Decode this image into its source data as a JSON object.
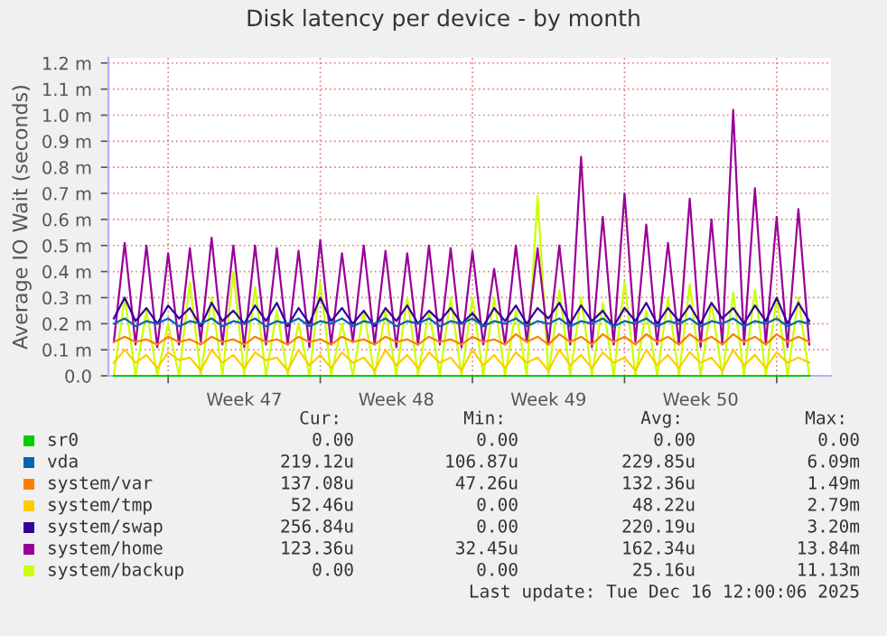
{
  "chart_data": {
    "type": "line",
    "title": "Disk latency per device - by month",
    "ylabel": "Average IO Wait (seconds)",
    "x": [
      "2025-11-14T12:00",
      "2025-11-15T00:00",
      "2025-11-15T12:00",
      "2025-11-16T00:00",
      "2025-11-16T12:00",
      "2025-11-17T00:00",
      "2025-11-17T12:00",
      "2025-11-18T00:00",
      "2025-11-18T12:00",
      "2025-11-19T00:00",
      "2025-11-19T12:00",
      "2025-11-20T00:00",
      "2025-11-20T12:00",
      "2025-11-21T00:00",
      "2025-11-21T12:00",
      "2025-11-22T00:00",
      "2025-11-22T12:00",
      "2025-11-23T00:00",
      "2025-11-23T12:00",
      "2025-11-24T00:00",
      "2025-11-24T12:00",
      "2025-11-25T00:00",
      "2025-11-25T12:00",
      "2025-11-26T00:00",
      "2025-11-26T12:00",
      "2025-11-27T00:00",
      "2025-11-27T12:00",
      "2025-11-28T00:00",
      "2025-11-28T12:00",
      "2025-11-29T00:00",
      "2025-11-29T12:00",
      "2025-11-30T00:00",
      "2025-11-30T12:00",
      "2025-12-01T00:00",
      "2025-12-01T12:00",
      "2025-12-02T00:00",
      "2025-12-02T12:00",
      "2025-12-03T00:00",
      "2025-12-03T12:00",
      "2025-12-04T00:00",
      "2025-12-04T12:00",
      "2025-12-05T00:00",
      "2025-12-05T12:00",
      "2025-12-06T00:00",
      "2025-12-06T12:00",
      "2025-12-07T00:00",
      "2025-12-07T12:00",
      "2025-12-08T00:00",
      "2025-12-08T12:00",
      "2025-12-09T00:00",
      "2025-12-09T12:00",
      "2025-12-10T00:00",
      "2025-12-10T12:00",
      "2025-12-11T00:00",
      "2025-12-11T12:00",
      "2025-12-12T00:00",
      "2025-12-12T12:00",
      "2025-12-13T00:00",
      "2025-12-13T12:00",
      "2025-12-14T00:00",
      "2025-12-14T12:00",
      "2025-12-15T00:00",
      "2025-12-15T12:00",
      "2025-12-16T00:00",
      "2025-12-16T12:00"
    ],
    "series": [
      {
        "name": "sr0",
        "color": "#00cc00",
        "values": [
          0,
          0,
          0,
          0,
          0,
          0,
          0,
          0,
          0,
          0,
          0,
          0,
          0,
          0,
          0,
          0,
          0,
          0,
          0,
          0,
          0,
          0,
          0,
          0,
          0,
          0,
          0,
          0,
          0,
          0,
          0,
          0,
          0,
          0,
          0,
          0,
          0,
          0,
          0,
          0,
          0,
          0,
          0,
          0,
          0,
          0,
          0,
          0,
          0,
          0,
          0,
          0,
          0,
          0,
          0,
          0,
          0,
          0,
          0,
          0,
          0,
          0,
          0,
          0,
          0
        ]
      },
      {
        "name": "vda",
        "color": "#0066b3",
        "values": [
          0.2,
          0.22,
          0.19,
          0.21,
          0.2,
          0.22,
          0.19,
          0.21,
          0.2,
          0.22,
          0.19,
          0.21,
          0.2,
          0.22,
          0.19,
          0.21,
          0.2,
          0.22,
          0.19,
          0.21,
          0.2,
          0.22,
          0.19,
          0.21,
          0.2,
          0.22,
          0.19,
          0.21,
          0.2,
          0.22,
          0.19,
          0.21,
          0.2,
          0.22,
          0.19,
          0.21,
          0.2,
          0.22,
          0.19,
          0.21,
          0.2,
          0.22,
          0.19,
          0.21,
          0.2,
          0.22,
          0.19,
          0.21,
          0.2,
          0.22,
          0.19,
          0.21,
          0.2,
          0.22,
          0.19,
          0.21,
          0.2,
          0.22,
          0.19,
          0.21,
          0.2,
          0.22,
          0.19,
          0.21,
          0.2
        ]
      },
      {
        "name": "system/var",
        "color": "#ff8000",
        "values": [
          0.13,
          0.15,
          0.13,
          0.14,
          0.12,
          0.15,
          0.13,
          0.14,
          0.12,
          0.15,
          0.13,
          0.14,
          0.12,
          0.15,
          0.13,
          0.14,
          0.12,
          0.15,
          0.13,
          0.14,
          0.12,
          0.15,
          0.13,
          0.14,
          0.12,
          0.15,
          0.13,
          0.14,
          0.12,
          0.15,
          0.13,
          0.14,
          0.12,
          0.15,
          0.13,
          0.14,
          0.12,
          0.16,
          0.13,
          0.15,
          0.12,
          0.16,
          0.13,
          0.15,
          0.12,
          0.16,
          0.13,
          0.15,
          0.12,
          0.16,
          0.13,
          0.15,
          0.12,
          0.16,
          0.13,
          0.15,
          0.12,
          0.16,
          0.13,
          0.15,
          0.12,
          0.16,
          0.13,
          0.15,
          0.13
        ]
      },
      {
        "name": "system/tmp",
        "color": "#ffcc00",
        "values": [
          0.05,
          0.1,
          0.05,
          0.08,
          0.03,
          0.09,
          0.06,
          0.07,
          0.02,
          0.1,
          0.05,
          0.08,
          0.03,
          0.09,
          0.06,
          0.07,
          0.02,
          0.1,
          0.04,
          0.08,
          0.03,
          0.09,
          0.05,
          0.07,
          0.02,
          0.1,
          0.04,
          0.08,
          0.03,
          0.09,
          0.05,
          0.07,
          0.02,
          0.1,
          0.04,
          0.08,
          0.03,
          0.09,
          0.05,
          0.07,
          0.02,
          0.1,
          0.04,
          0.08,
          0.03,
          0.09,
          0.05,
          0.07,
          0.02,
          0.1,
          0.04,
          0.08,
          0.03,
          0.09,
          0.05,
          0.07,
          0.02,
          0.1,
          0.04,
          0.08,
          0.03,
          0.09,
          0.05,
          0.07,
          0.05
        ]
      },
      {
        "name": "system/swap",
        "color": "#330099",
        "values": [
          0.22,
          0.3,
          0.21,
          0.26,
          0.2,
          0.27,
          0.22,
          0.26,
          0.19,
          0.28,
          0.21,
          0.25,
          0.2,
          0.27,
          0.21,
          0.28,
          0.19,
          0.26,
          0.2,
          0.3,
          0.21,
          0.26,
          0.2,
          0.25,
          0.19,
          0.26,
          0.21,
          0.27,
          0.2,
          0.25,
          0.21,
          0.26,
          0.2,
          0.24,
          0.19,
          0.26,
          0.21,
          0.27,
          0.2,
          0.26,
          0.22,
          0.28,
          0.2,
          0.27,
          0.21,
          0.25,
          0.19,
          0.26,
          0.21,
          0.28,
          0.2,
          0.26,
          0.21,
          0.27,
          0.2,
          0.28,
          0.22,
          0.26,
          0.2,
          0.27,
          0.21,
          0.3,
          0.2,
          0.28,
          0.21
        ]
      },
      {
        "name": "system/home",
        "color": "#990099",
        "values": [
          0.13,
          0.51,
          0.12,
          0.5,
          0.11,
          0.47,
          0.12,
          0.49,
          0.13,
          0.53,
          0.12,
          0.5,
          0.11,
          0.5,
          0.12,
          0.49,
          0.12,
          0.48,
          0.11,
          0.52,
          0.12,
          0.47,
          0.13,
          0.5,
          0.12,
          0.48,
          0.11,
          0.47,
          0.12,
          0.5,
          0.12,
          0.49,
          0.11,
          0.48,
          0.12,
          0.41,
          0.12,
          0.5,
          0.13,
          0.49,
          0.12,
          0.5,
          0.12,
          0.84,
          0.11,
          0.61,
          0.12,
          0.7,
          0.13,
          0.58,
          0.12,
          0.51,
          0.12,
          0.68,
          0.11,
          0.6,
          0.12,
          1.02,
          0.12,
          0.72,
          0.12,
          0.61,
          0.11,
          0.64,
          0.12
        ]
      },
      {
        "name": "system/backup",
        "color": "#ccff00",
        "values": [
          0,
          0.3,
          0,
          0.25,
          0,
          0.2,
          0,
          0.36,
          0,
          0.3,
          0,
          0.4,
          0,
          0.34,
          0,
          0.25,
          0,
          0.2,
          0,
          0.36,
          0,
          0.2,
          0,
          0.25,
          0,
          0.25,
          0,
          0.3,
          0,
          0.25,
          0,
          0.3,
          0,
          0.3,
          0,
          0.3,
          0,
          0.25,
          0,
          0.69,
          0,
          0.33,
          0,
          0.3,
          0,
          0.28,
          0,
          0.36,
          0,
          0.25,
          0,
          0.3,
          0,
          0.35,
          0,
          0.28,
          0,
          0.32,
          0,
          0.33,
          0,
          0.3,
          0,
          0.3,
          0
        ]
      }
    ],
    "xlim": [
      "2025-11-14T06:00",
      "2025-12-17T12:00"
    ],
    "xticks": [
      {
        "value": "2025-11-17",
        "label": null
      },
      {
        "value": "2025-11-20T12:00",
        "label": "Week 47"
      },
      {
        "value": "2025-11-24",
        "label": null
      },
      {
        "value": "2025-11-27T12:00",
        "label": "Week 48"
      },
      {
        "value": "2025-12-01",
        "label": null
      },
      {
        "value": "2025-12-04T12:00",
        "label": "Week 49"
      },
      {
        "value": "2025-12-08",
        "label": null
      },
      {
        "value": "2025-12-11T12:00",
        "label": "Week 50"
      },
      {
        "value": "2025-12-15",
        "label": null
      }
    ],
    "ylim": [
      0,
      1.22
    ],
    "yticks": [
      {
        "value": 0,
        "label": "0.0"
      },
      {
        "value": 0.1,
        "label": "0.1 m"
      },
      {
        "value": 0.2,
        "label": "0.2 m"
      },
      {
        "value": 0.3,
        "label": "0.3 m"
      },
      {
        "value": 0.4,
        "label": "0.4 m"
      },
      {
        "value": 0.5,
        "label": "0.5 m"
      },
      {
        "value": 0.6,
        "label": "0.6 m"
      },
      {
        "value": 0.7,
        "label": "0.7 m"
      },
      {
        "value": 0.8,
        "label": "0.8 m"
      },
      {
        "value": 0.9,
        "label": "0.9 m"
      },
      {
        "value": 1.0,
        "label": "1.0 m"
      },
      {
        "value": 1.1,
        "label": "1.1 m"
      },
      {
        "value": 1.2,
        "label": "1.2 m"
      }
    ],
    "grid": true,
    "legend": "bottom",
    "marker": "none",
    "line_style": "solid",
    "annotations": [
      "Cur:",
      "Min:",
      "Avg:",
      "Max:",
      "0.00",
      "0.00",
      "0.00",
      "0.00",
      "219.12u",
      "106.87u",
      "229.85u",
      "6.09m",
      "137.08u",
      "47.26u",
      "132.36u",
      "1.49m",
      "52.46u",
      "0.00",
      "48.22u",
      "2.79m",
      "256.84u",
      "0.00",
      "220.19u",
      "3.20m",
      "123.36u",
      "32.45u",
      "162.34u",
      "13.84m",
      "0.00",
      "0.00",
      "25.16u",
      "11.13m",
      "Last update: Tue Dec 16 12:00:06 2025"
    ]
  }
}
